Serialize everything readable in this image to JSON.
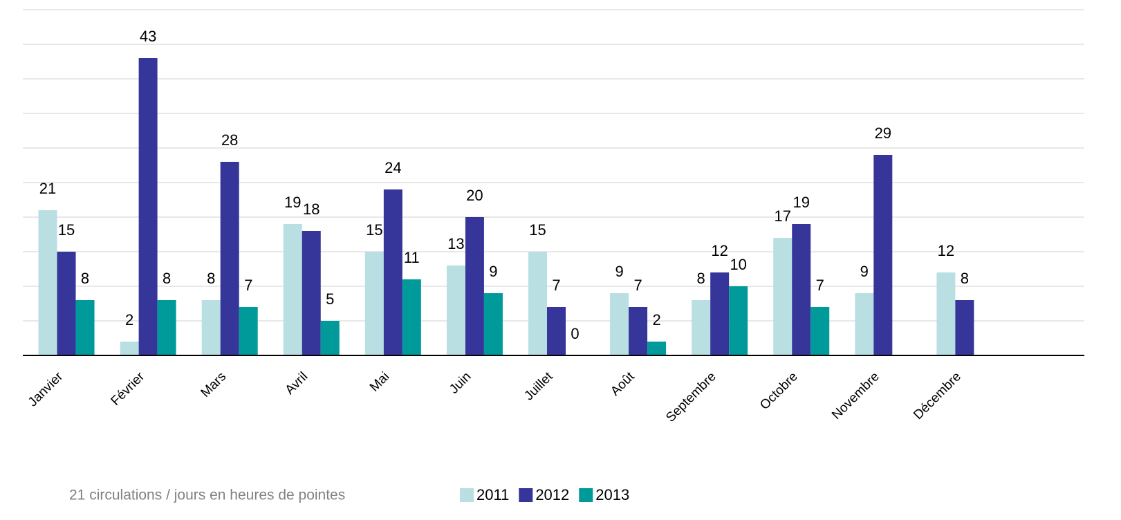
{
  "chart_data": {
    "type": "bar",
    "categories": [
      "Janvier",
      "Février",
      "Mars",
      "Avril",
      "Mai",
      "Juin",
      "Juillet",
      "Août",
      "Septembre",
      "Octobre",
      "Novembre",
      "Décembre",
      null
    ],
    "series": [
      {
        "name": "2011",
        "color": "#b9dfe3",
        "values": [
          21,
          2,
          8,
          19,
          15,
          13,
          15,
          9,
          8,
          17,
          9,
          12,
          null
        ]
      },
      {
        "name": "2012",
        "color": "#35359a",
        "values": [
          15,
          43,
          28,
          18,
          24,
          20,
          7,
          7,
          12,
          19,
          29,
          8,
          null
        ]
      },
      {
        "name": "2013",
        "color": "#009a9a",
        "values": [
          8,
          8,
          7,
          5,
          11,
          9,
          0,
          2,
          10,
          7,
          null,
          null,
          null
        ]
      }
    ],
    "ylim": [
      0,
      50
    ],
    "yticks": [
      0,
      5,
      10,
      15,
      20,
      25,
      30,
      35,
      40,
      45,
      50
    ],
    "grid": true,
    "note": "21 circulations / jours en heures de pointes"
  }
}
